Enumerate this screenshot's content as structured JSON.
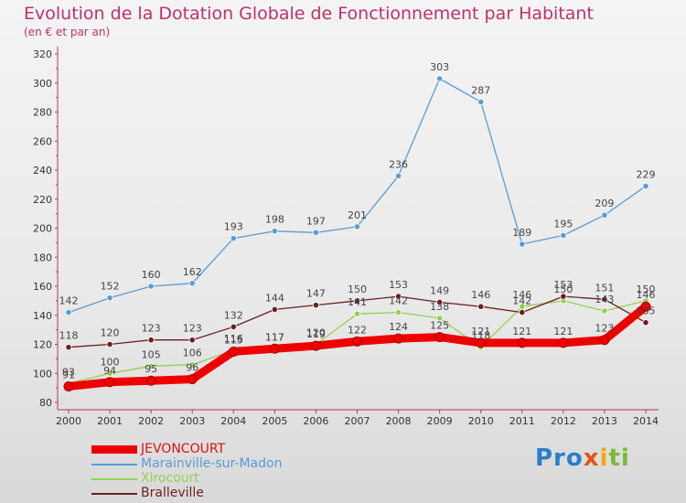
{
  "chart_data": {
    "type": "line",
    "title": "Evolution de la Dotation Globale de Fonctionnement par Habitant",
    "subtitle": "(en € et par an)",
    "xlabel": "",
    "ylabel": "",
    "x": [
      "2000",
      "2001",
      "2002",
      "2003",
      "2004",
      "2005",
      "2006",
      "2007",
      "2008",
      "2009",
      "2010",
      "2011",
      "2012",
      "2013",
      "2014"
    ],
    "ylim": [
      80,
      320
    ],
    "yticks": [
      80,
      100,
      120,
      140,
      160,
      180,
      200,
      220,
      240,
      260,
      280,
      300,
      320
    ],
    "grid": false,
    "legend_position": "bottom-left",
    "series": [
      {
        "name": "JEVONCOURT",
        "color": "#ee0000",
        "values": [
          91,
          94,
          95,
          96,
          115,
          117,
          119,
          122,
          124,
          125,
          121,
          121,
          121,
          123,
          146
        ]
      },
      {
        "name": "Marainville-sur-Madon",
        "color": "#5b9bd5",
        "values": [
          142,
          152,
          160,
          162,
          193,
          198,
          197,
          201,
          236,
          303,
          287,
          189,
          195,
          209,
          229
        ]
      },
      {
        "name": "Xirocourt",
        "color": "#92d050",
        "values": [
          93,
          100,
          105,
          106,
          116,
          117,
          120,
          141,
          142,
          138,
          118,
          146,
          150,
          143,
          150
        ]
      },
      {
        "name": "Bralleville",
        "color": "#6b1f1f",
        "values": [
          118,
          120,
          123,
          123,
          132,
          144,
          147,
          150,
          153,
          149,
          146,
          142,
          153,
          151,
          135
        ]
      }
    ]
  },
  "logo": {
    "p1": "Pro",
    "p2": "x",
    "p3": "i",
    "p4": "ti"
  }
}
